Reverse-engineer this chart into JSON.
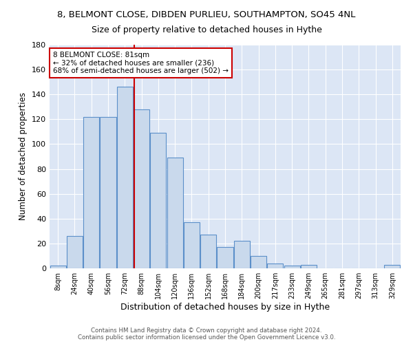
{
  "title": "8, BELMONT CLOSE, DIBDEN PURLIEU, SOUTHAMPTON, SO45 4NL",
  "subtitle": "Size of property relative to detached houses in Hythe",
  "xlabel": "Distribution of detached houses by size in Hythe",
  "ylabel": "Number of detached properties",
  "bin_labels": [
    "8sqm",
    "24sqm",
    "40sqm",
    "56sqm",
    "72sqm",
    "88sqm",
    "104sqm",
    "120sqm",
    "136sqm",
    "152sqm",
    "168sqm",
    "184sqm",
    "200sqm",
    "217sqm",
    "233sqm",
    "249sqm",
    "265sqm",
    "281sqm",
    "297sqm",
    "313sqm",
    "329sqm"
  ],
  "bar_heights": [
    2,
    26,
    122,
    122,
    146,
    128,
    109,
    89,
    37,
    27,
    17,
    22,
    10,
    4,
    2,
    3,
    0,
    0,
    0,
    0,
    3
  ],
  "bar_color": "#c9d9ec",
  "bar_edge_color": "#5b8fc9",
  "property_sqm": 81,
  "vline_color": "#cc0000",
  "annotation_line1": "8 BELMONT CLOSE: 81sqm",
  "annotation_line2": "← 32% of detached houses are smaller (236)",
  "annotation_line3": "68% of semi-detached houses are larger (502) →",
  "annotation_box_color": "#ffffff",
  "annotation_box_edge": "#cc0000",
  "ylim": [
    0,
    180
  ],
  "yticks": [
    0,
    20,
    40,
    60,
    80,
    100,
    120,
    140,
    160,
    180
  ],
  "background_color": "#dce6f5",
  "footer_text": "Contains HM Land Registry data © Crown copyright and database right 2024.\nContains public sector information licensed under the Open Government Licence v3.0.",
  "title_fontsize": 9.5,
  "subtitle_fontsize": 9,
  "xlabel_fontsize": 9,
  "ylabel_fontsize": 8.5
}
